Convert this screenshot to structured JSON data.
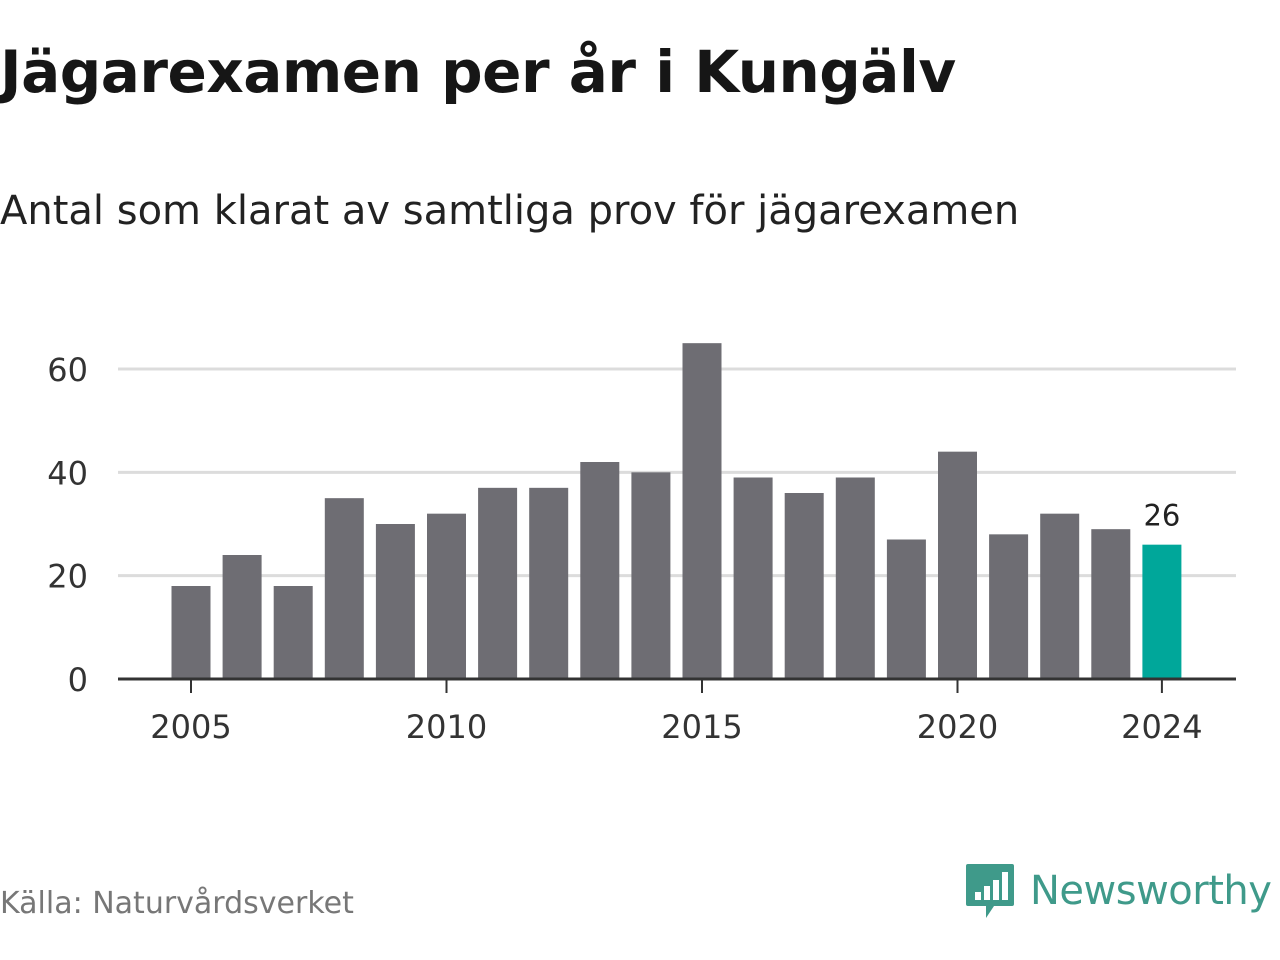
{
  "title": "Jägarexamen per år i Kungälv",
  "subtitle": "Antal som klarat av samtliga prov för jägarexamen",
  "source": "Källa: Naturvårdsverket",
  "brand": {
    "name": "Newsworthy",
    "icon": "newsworthy-logo-icon"
  },
  "colors": {
    "bar": "#6e6d73",
    "highlight": "#00a79a",
    "grid": "#dcdcdc",
    "axis": "#333333",
    "brand": "#3f9a8a"
  },
  "chart_data": {
    "type": "bar",
    "title": "Jägarexamen per år i Kungälv",
    "subtitle": "Antal som klarat av samtliga prov för jägarexamen",
    "xlabel": "",
    "ylabel": "",
    "categories": [
      2005,
      2006,
      2007,
      2008,
      2009,
      2010,
      2011,
      2012,
      2013,
      2014,
      2015,
      2016,
      2017,
      2018,
      2019,
      2020,
      2021,
      2022,
      2023,
      2024
    ],
    "values": [
      18,
      24,
      18,
      35,
      30,
      32,
      37,
      37,
      42,
      40,
      65,
      39,
      36,
      39,
      27,
      44,
      28,
      32,
      29,
      26
    ],
    "highlight_category": 2024,
    "highlight_label": "26",
    "x_tick_labels": [
      "2005",
      "2010",
      "2015",
      "2020",
      "2024"
    ],
    "y_ticks": [
      0,
      20,
      40,
      60
    ],
    "y_tick_labels": [
      "0",
      "20",
      "40",
      "60"
    ],
    "ylim": [
      0,
      66
    ],
    "grid": true,
    "legend": "none"
  }
}
